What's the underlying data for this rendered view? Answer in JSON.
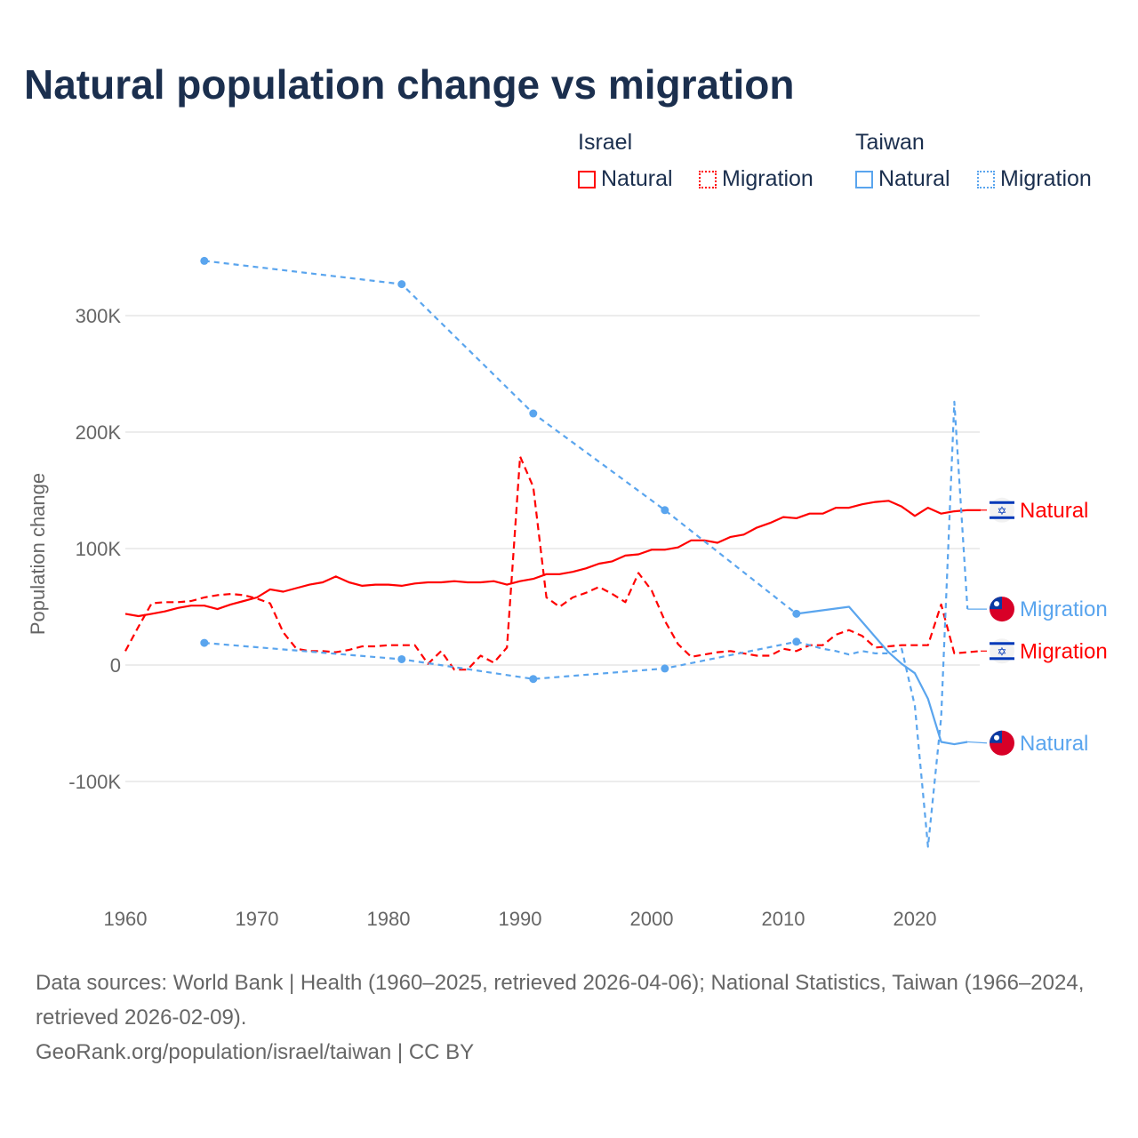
{
  "title": "Natural population change vs migration",
  "legend": {
    "groups": [
      {
        "name": "Israel",
        "items": [
          "Natural",
          "Migration"
        ],
        "color": "#ff0000"
      },
      {
        "name": "Taiwan",
        "items": [
          "Natural",
          "Migration"
        ],
        "color": "#5aa5ee"
      }
    ]
  },
  "footer": {
    "line1": "Data sources: World Bank | Health (1960–2025, retrieved 2026-04-06); National Statistics, Taiwan (1966–2024, retrieved 2026-02-09).",
    "line2": "GeoRank.org/population/israel/taiwan | CC BY"
  },
  "chart_data": {
    "type": "line",
    "ylabel": "Population change",
    "xlabel": "",
    "xlim": [
      1960,
      2025
    ],
    "ylim": [
      -170000,
      370000
    ],
    "xticks": [
      1960,
      1970,
      1980,
      1990,
      2000,
      2010,
      2020
    ],
    "yticks": [
      {
        "v": -100000,
        "l": "-100K"
      },
      {
        "v": 0,
        "l": "0"
      },
      {
        "v": 100000,
        "l": "100K"
      },
      {
        "v": 200000,
        "l": "200K"
      },
      {
        "v": 300000,
        "l": "300K"
      }
    ],
    "series": [
      {
        "name": "Natural",
        "country": "Israel",
        "color": "#ff0000",
        "dash": false,
        "start": 1960,
        "label_y": 133000,
        "values": [
          44,
          42,
          44,
          46,
          49,
          51,
          51,
          48,
          52,
          55,
          58,
          65,
          63,
          66,
          69,
          71,
          76,
          71,
          68,
          69,
          69,
          68,
          70,
          71,
          71,
          72,
          71,
          71,
          72,
          69,
          72,
          74,
          78,
          78,
          80,
          83,
          87,
          89,
          94,
          95,
          99,
          99,
          101,
          107,
          107,
          105,
          110,
          112,
          118,
          122,
          127,
          126,
          130,
          130,
          135,
          135,
          138,
          140,
          141,
          136,
          128,
          135,
          130,
          132,
          133,
          133
        ]
      },
      {
        "name": "Migration",
        "country": "Israel",
        "color": "#ff0000",
        "dash": true,
        "start": 1960,
        "label_y": 12000,
        "values": [
          12,
          33,
          53,
          54,
          54,
          55,
          58,
          60,
          61,
          60,
          57,
          53,
          28,
          14,
          12,
          12,
          11,
          13,
          16,
          16,
          17,
          17,
          17,
          1,
          12,
          -4,
          -4,
          8,
          2,
          15,
          179,
          153,
          58,
          50,
          58,
          62,
          67,
          61,
          54,
          79,
          64,
          38,
          18,
          7,
          9,
          11,
          12,
          10,
          8,
          8,
          14,
          12,
          17,
          17,
          26,
          30,
          25,
          15,
          16,
          17,
          17,
          17,
          52,
          10,
          11,
          12
        ]
      },
      {
        "name": "Natural",
        "country": "Taiwan",
        "color": "#5aa5ee",
        "dash": false,
        "sparse_until": 2011,
        "label_y": -67000,
        "points": [
          [
            1966,
            347
          ],
          [
            1981,
            327
          ],
          [
            1991,
            216
          ],
          [
            2001,
            133
          ],
          [
            2011,
            44
          ],
          [
            2015,
            50
          ],
          [
            2016,
            37
          ],
          [
            2017,
            24
          ],
          [
            2018,
            11
          ],
          [
            2019,
            1
          ],
          [
            2020,
            -7
          ],
          [
            2021,
            -29
          ],
          [
            2022,
            -66
          ],
          [
            2023,
            -68
          ],
          [
            2024,
            -66
          ]
        ]
      },
      {
        "name": "Migration",
        "country": "Taiwan",
        "color": "#5aa5ee",
        "dash": true,
        "sparse_until": 2011,
        "label_y": 48000,
        "points": [
          [
            1966,
            19
          ],
          [
            1981,
            5
          ],
          [
            1991,
            -12
          ],
          [
            2001,
            -3
          ],
          [
            2011,
            20
          ],
          [
            2012,
            17
          ],
          [
            2013,
            14
          ],
          [
            2014,
            12
          ],
          [
            2015,
            9
          ],
          [
            2016,
            12
          ],
          [
            2017,
            10
          ],
          [
            2018,
            10
          ],
          [
            2019,
            14
          ],
          [
            2020,
            -35
          ],
          [
            2021,
            -156
          ],
          [
            2022,
            -45
          ],
          [
            2023,
            226
          ],
          [
            2024,
            48
          ]
        ]
      }
    ]
  }
}
